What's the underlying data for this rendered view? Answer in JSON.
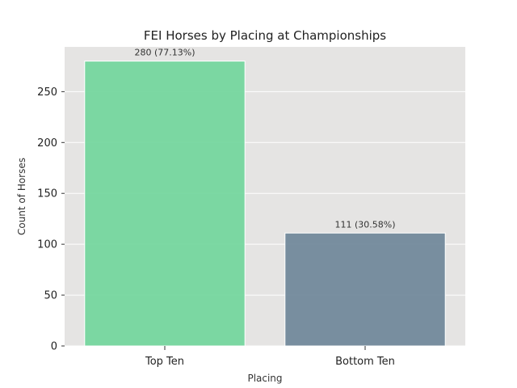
{
  "chart_data": {
    "type": "bar",
    "title": "FEI Horses by Placing at Championships",
    "xlabel": "Placing",
    "ylabel": "Count of Horses",
    "categories": [
      "Top Ten",
      "Bottom Ten"
    ],
    "values": [
      280,
      111
    ],
    "data_labels": [
      "280 (77.13%)",
      "111 (30.58%)"
    ],
    "bar_colors": [
      "#6fd59a",
      "#6b8497"
    ],
    "ylim": [
      0,
      294
    ],
    "yticks": [
      0,
      50,
      100,
      150,
      200,
      250
    ],
    "grid": true,
    "plot_background": "#e5e4e3",
    "legend": "none"
  }
}
